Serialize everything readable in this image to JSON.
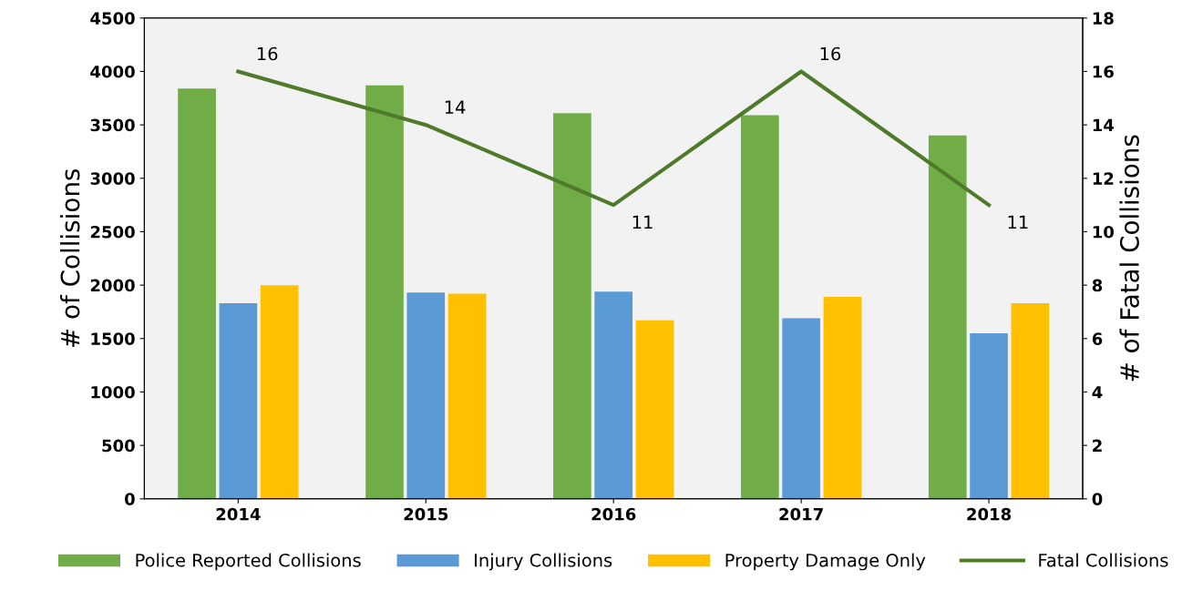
{
  "chart_data": {
    "type": "bar",
    "categories": [
      "2014",
      "2015",
      "2016",
      "2017",
      "2018"
    ],
    "ylabel": "# of Collisions",
    "y2label": "# of Fatal Collisions",
    "ylim": [
      0,
      4500
    ],
    "yticks": [
      0,
      500,
      1000,
      1500,
      2000,
      2500,
      3000,
      3500,
      4000,
      4500
    ],
    "y2lim": [
      0,
      18
    ],
    "y2ticks": [
      0,
      2,
      4,
      6,
      8,
      10,
      12,
      14,
      16,
      18
    ],
    "grid": false,
    "legend": "bottom",
    "series": [
      {
        "name": "Police Reported Collisions",
        "color": "#70ad47",
        "values": [
          3840,
          3870,
          3610,
          3590,
          3400
        ]
      },
      {
        "name": "Injury Collisions",
        "color": "#5b9bd5",
        "values": [
          1830,
          1930,
          1940,
          1690,
          1550
        ]
      },
      {
        "name": "Property Damage Only",
        "color": "#ffc000",
        "values": [
          2000,
          1920,
          1670,
          1890,
          1830
        ]
      },
      {
        "name": "Fatal Collisions",
        "type": "line",
        "axis": "y2",
        "color": "#4f7a2a",
        "values": [
          16,
          14,
          11,
          16,
          11
        ],
        "value_labels": [
          "16",
          "14",
          "11",
          "16",
          "11"
        ]
      }
    ]
  }
}
